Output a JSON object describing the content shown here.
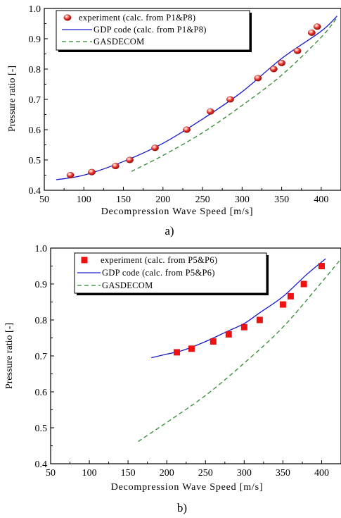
{
  "chart_data": [
    {
      "type": "line",
      "caption": "a)",
      "xlabel": "Decompression Wave Speed [m/s]",
      "ylabel": "Pressure ratio [-]",
      "xlim": [
        50,
        425
      ],
      "ylim": [
        0.4,
        1.0
      ],
      "x_ticks": [
        50,
        100,
        150,
        200,
        250,
        300,
        350,
        400
      ],
      "y_ticks": [
        "0.4",
        "0.5",
        "0.6",
        "0.7",
        "0.8",
        "0.9",
        "1.0"
      ],
      "legend_position": "top-left",
      "series": [
        {
          "name": "experiment (calc. from P1&P8)",
          "style": "ball-marker",
          "color": "#e8302a",
          "x": [
            83,
            110,
            140,
            158,
            190,
            230,
            260,
            285,
            320,
            340,
            350,
            370,
            388,
            395
          ],
          "y": [
            0.45,
            0.46,
            0.48,
            0.5,
            0.54,
            0.6,
            0.66,
            0.7,
            0.77,
            0.8,
            0.82,
            0.86,
            0.92,
            0.94
          ]
        },
        {
          "name": "GDP code  (calc. from P1&P8)",
          "style": "solid",
          "color": "#1a1acc",
          "x": [
            65,
            100,
            150,
            200,
            250,
            300,
            350,
            400,
            420
          ],
          "y": [
            0.435,
            0.45,
            0.495,
            0.555,
            0.635,
            0.725,
            0.835,
            0.925,
            0.975
          ]
        },
        {
          "name": "GASDECOM",
          "style": "dashed",
          "color": "#2e8b2e",
          "x": [
            160,
            200,
            250,
            300,
            350,
            400,
            420
          ],
          "y": [
            0.462,
            0.515,
            0.59,
            0.68,
            0.78,
            0.905,
            0.97
          ]
        }
      ]
    },
    {
      "type": "line",
      "caption": "b)",
      "xlabel": "Decompression Wave Speed [m/s]",
      "ylabel": "Pressure ratio [-]",
      "xlim": [
        50,
        425
      ],
      "ylim": [
        0.4,
        1.0
      ],
      "x_ticks": [
        50,
        100,
        150,
        200,
        250,
        300,
        350,
        400
      ],
      "y_ticks": [
        "0.4",
        "0.5",
        "0.6",
        "0.7",
        "0.8",
        "0.9",
        "1.0"
      ],
      "legend_position": "top-left",
      "series": [
        {
          "name": "experiment (calc. from P5&P6)",
          "style": "square-marker",
          "color": "#ee1111",
          "x": [
            213,
            232,
            260,
            280,
            300,
            320,
            350,
            360,
            377,
            400
          ],
          "y": [
            0.71,
            0.72,
            0.74,
            0.76,
            0.78,
            0.8,
            0.843,
            0.866,
            0.9,
            0.95
          ]
        },
        {
          "name": "GDP code  (calc. from P5&P6)",
          "style": "solid",
          "color": "#1a1acc",
          "x": [
            180,
            200,
            220,
            250,
            280,
            300,
            320,
            350,
            380,
            405
          ],
          "y": [
            0.695,
            0.705,
            0.715,
            0.74,
            0.77,
            0.79,
            0.82,
            0.865,
            0.925,
            0.97
          ]
        },
        {
          "name": "GASDECOM",
          "style": "dashed",
          "color": "#2e8b2e",
          "x": [
            163,
            200,
            250,
            300,
            350,
            400,
            425
          ],
          "y": [
            0.462,
            0.515,
            0.59,
            0.68,
            0.78,
            0.905,
            0.97
          ]
        }
      ]
    }
  ]
}
